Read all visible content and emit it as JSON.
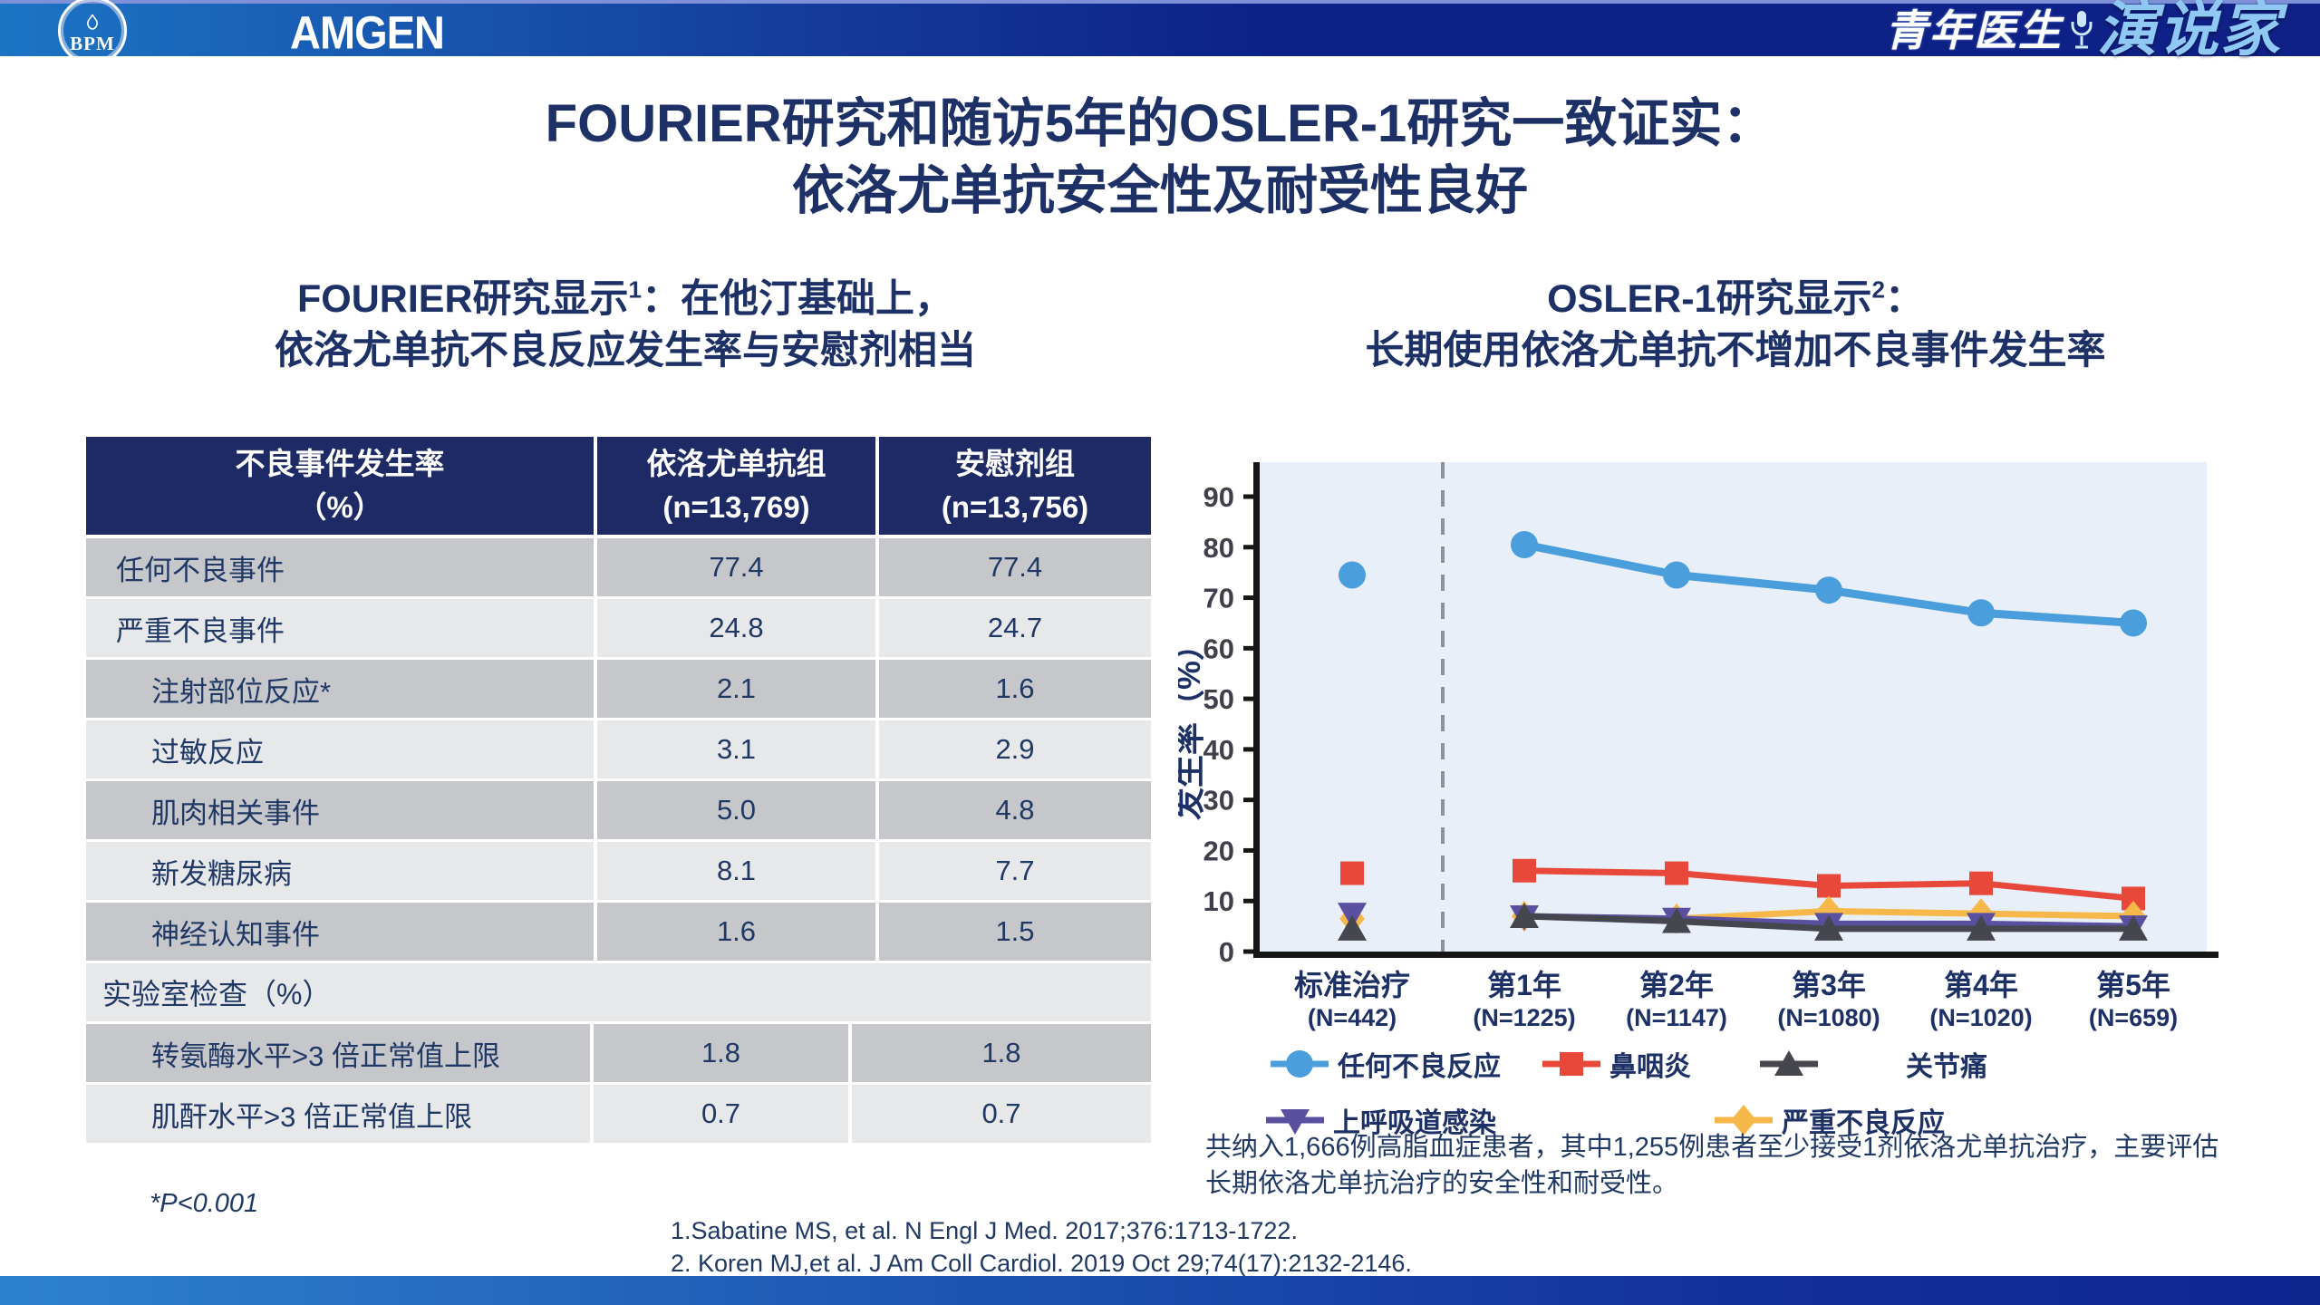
{
  "header": {
    "bpm_logo": "BPM",
    "amgen_logo": "AMGEN",
    "brand_part1": "青年医生",
    "brand_part2": "演说家"
  },
  "title": {
    "line1": "FOURIER研究和随访5年的OSLER-1研究一致证实：",
    "line2": "依洛尤单抗安全性及耐受性良好"
  },
  "left_panel": {
    "subtitle_pre": "FOURIER研究显示",
    "subtitle_sup": "1",
    "subtitle_post": "：在他汀基础上，",
    "subtitle_line2": "依洛尤单抗不良反应发生率与安慰剂相当",
    "footnote": "*P<0.001",
    "table": {
      "header": {
        "col1_line1": "不良事件发生率",
        "col1_line2": "（%）",
        "col2_line1": "依洛尤单抗组",
        "col2_line2": "(n=13,769)",
        "col3_line1": "安慰剂组",
        "col3_line2": "(n=13,756)"
      },
      "rows": [
        {
          "label": "任何不良事件",
          "v1": "77.4",
          "v2": "77.4",
          "indent": false,
          "shade": "dark"
        },
        {
          "label": "严重不良事件",
          "v1": "24.8",
          "v2": "24.7",
          "indent": false,
          "shade": "light"
        },
        {
          "label": "注射部位反应*",
          "v1": "2.1",
          "v2": "1.6",
          "indent": true,
          "shade": "dark"
        },
        {
          "label": "过敏反应",
          "v1": "3.1",
          "v2": "2.9",
          "indent": true,
          "shade": "light"
        },
        {
          "label": "肌肉相关事件",
          "v1": "5.0",
          "v2": "4.8",
          "indent": true,
          "shade": "dark"
        },
        {
          "label": "新发糖尿病",
          "v1": "8.1",
          "v2": "7.7",
          "indent": true,
          "shade": "light"
        },
        {
          "label": "神经认知事件",
          "v1": "1.6",
          "v2": "1.5",
          "indent": true,
          "shade": "dark"
        },
        {
          "label": "实验室检查（%）",
          "section": true,
          "shade": "light"
        },
        {
          "label": "转氨酶水平>3 倍正常值上限",
          "v1": "1.8",
          "v2": "1.8",
          "indent": true,
          "shade": "dark",
          "wide": true
        },
        {
          "label": "肌酐水平>3 倍正常值上限",
          "v1": "0.7",
          "v2": "0.7",
          "indent": true,
          "shade": "light",
          "wide": true
        }
      ]
    }
  },
  "right_panel": {
    "subtitle_pre": "OSLER-1研究显示",
    "subtitle_sup": "2",
    "subtitle_post": "：",
    "subtitle_line2": "长期使用依洛尤单抗不增加不良事件发生率",
    "note_line1": "共纳入1,666例高脂血症患者，其中1,255例患者至少接受1剂依洛尤单抗治疗，主要评估",
    "note_line2": "长期依洛尤单抗治疗的安全性和耐受性。"
  },
  "chart_data": {
    "type": "line",
    "title": "",
    "ylabel": "发生率（%）",
    "ylim": [
      0,
      90
    ],
    "yticks": [
      0,
      10,
      20,
      30,
      40,
      50,
      60,
      70,
      80,
      90
    ],
    "grid": false,
    "plot_bg": "#e9eff8",
    "baseline_separator": "dashed line between 标准治疗 and 第1年",
    "categories": [
      "标准治疗",
      "第1年",
      "第2年",
      "第3年",
      "第4年",
      "第5年"
    ],
    "category_sublabels": [
      "(N=442)",
      "(N=1225)",
      "(N=1147)",
      "(N=1080)",
      "(N=1020)",
      "(N=659)"
    ],
    "series": [
      {
        "name": "任何不良反应",
        "color": "#4a9edb",
        "marker": "circle",
        "values": [
          74.5,
          80.5,
          74.5,
          71.5,
          67,
          65
        ]
      },
      {
        "name": "鼻咽炎",
        "color": "#e8483a",
        "marker": "square",
        "values": [
          15.5,
          16,
          15.5,
          13,
          13.5,
          10.5
        ]
      },
      {
        "name": "严重不良反应",
        "color": "#f6b84b",
        "marker": "diamond",
        "values": [
          6.5,
          7,
          6.5,
          8,
          7.5,
          7
        ]
      },
      {
        "name": "上呼吸道感染",
        "color": "#5b50a0",
        "marker": "triangle-down",
        "values": [
          7.5,
          7,
          6.5,
          5.5,
          5.5,
          5
        ]
      },
      {
        "name": "关节痛",
        "color": "#46464e",
        "marker": "triangle-up",
        "values": [
          4.5,
          7,
          6,
          4.5,
          4.5,
          4.5
        ]
      }
    ],
    "legend_row1": [
      "任何不良反应",
      "鼻咽炎",
      "关节痛"
    ],
    "legend_row2": [
      "上呼吸道感染",
      "严重不良反应"
    ],
    "legend_position": "below"
  },
  "references": [
    "1.Sabatine MS, et al. N Engl J Med. 2017;376:1713-1722.",
    "2. Koren MJ,et al. J Am Coll Cardiol. 2019 Oct 29;74(17):2132-2146."
  ]
}
